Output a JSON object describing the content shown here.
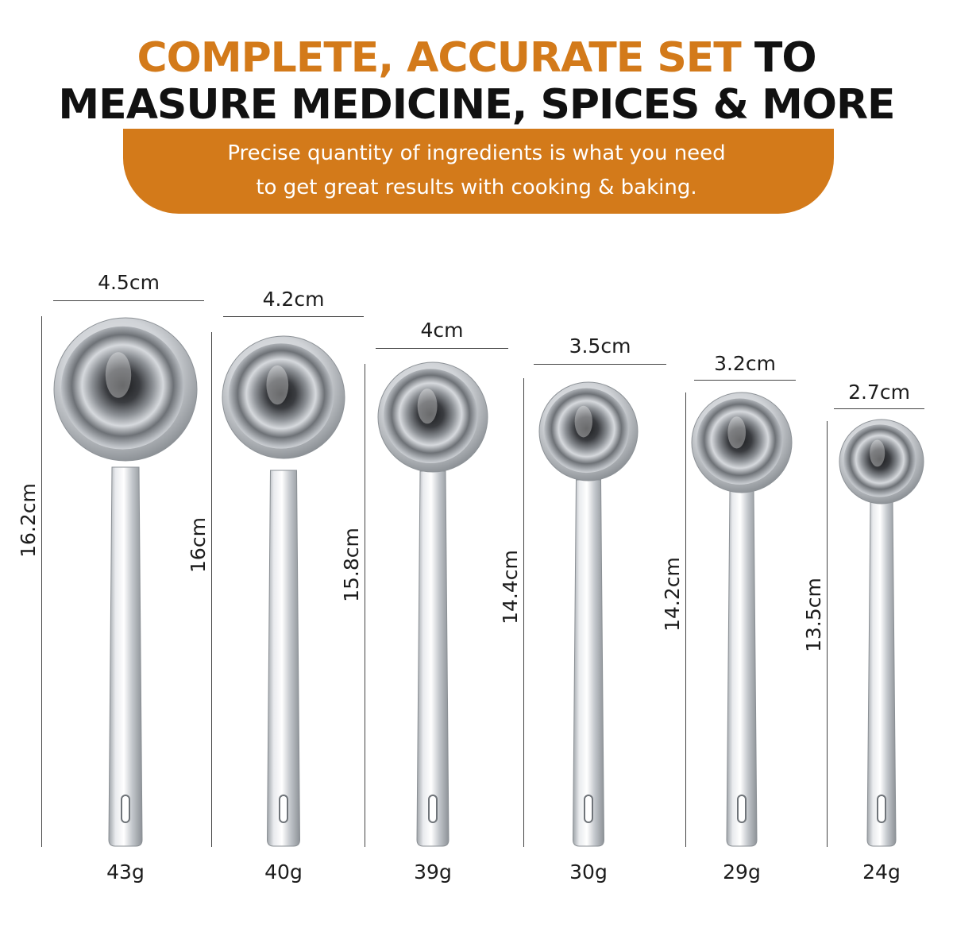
{
  "headline": {
    "line1_accent": "COMPLETE, ACCURATE SET",
    "line1_rest": " TO",
    "line2": "MEASURE MEDICINE, SPICES & MORE"
  },
  "subtitle": {
    "line1": "Precise quantity of ingredients is what you need",
    "line2": "to get great results with cooking & baking."
  },
  "colors": {
    "accent": "#d37a1a",
    "text": "#111111",
    "steel": "#c9cdd2"
  },
  "spoons": [
    {
      "width": "4.5cm",
      "length": "16.2cm",
      "weight": "43g"
    },
    {
      "width": "4.2cm",
      "length": "16cm",
      "weight": "40g"
    },
    {
      "width": "4cm",
      "length": "15.8cm",
      "weight": "39g"
    },
    {
      "width": "3.5cm",
      "length": "14.4cm",
      "weight": "30g"
    },
    {
      "width": "3.2cm",
      "length": "14.2cm",
      "weight": "29g"
    },
    {
      "width": "2.7cm",
      "length": "13.5cm",
      "weight": "24g"
    }
  ]
}
